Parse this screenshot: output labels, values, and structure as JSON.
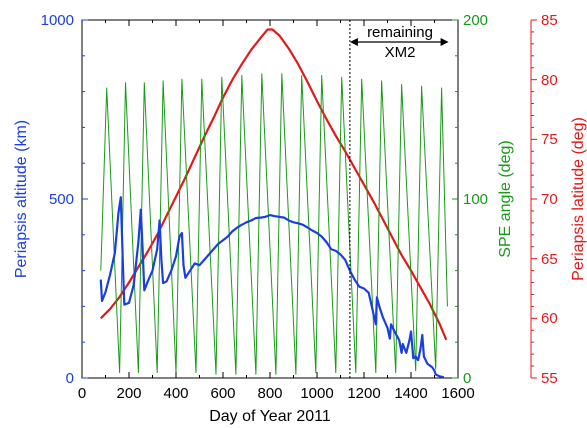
{
  "chart_data": {
    "type": "line",
    "xlabel": "Day of Year 2011",
    "xlim": [
      0,
      1600
    ],
    "x_ticks": [
      "0",
      "200",
      "400",
      "600",
      "800",
      "1000",
      "1200",
      "1400",
      "1600"
    ],
    "y_axes": {
      "altitude": {
        "label": "Periapsis altitude (km)",
        "lim": [
          0,
          1000
        ],
        "ticks": [
          "0",
          "500",
          "1000"
        ],
        "color": "#1a3fe0"
      },
      "spe": {
        "label": "SPE angle (deg)",
        "lim": [
          0,
          200
        ],
        "ticks": [
          "0",
          "100",
          "200"
        ],
        "color": "#1a9a1a"
      },
      "latitude": {
        "label": "Periapsis latitude (deg)",
        "lim": [
          55,
          85
        ],
        "ticks": [
          "55",
          "60",
          "65",
          "70",
          "75",
          "80",
          "85"
        ],
        "color": "#e01a1a"
      }
    },
    "annotation": {
      "line1": "remaining",
      "line2": "XM2",
      "x_start": 1140,
      "x_end": 1560
    },
    "series": [
      {
        "axis": "latitude",
        "color": "#e01a1a",
        "points": [
          [
            80,
            60
          ],
          [
            120,
            60.8
          ],
          [
            160,
            61.8
          ],
          [
            200,
            63
          ],
          [
            240,
            64.3
          ],
          [
            280,
            65.6
          ],
          [
            320,
            67
          ],
          [
            360,
            68.6
          ],
          [
            400,
            70.2
          ],
          [
            440,
            71.8
          ],
          [
            480,
            73.5
          ],
          [
            520,
            75.2
          ],
          [
            560,
            76.8
          ],
          [
            600,
            78.5
          ],
          [
            640,
            80
          ],
          [
            680,
            81.3
          ],
          [
            720,
            82.5
          ],
          [
            760,
            83.5
          ],
          [
            790,
            84.2
          ],
          [
            810,
            84.2
          ],
          [
            840,
            83.7
          ],
          [
            880,
            82.6
          ],
          [
            920,
            81.3
          ],
          [
            960,
            79.8
          ],
          [
            1000,
            78.2
          ],
          [
            1040,
            76.7
          ],
          [
            1080,
            75.3
          ],
          [
            1120,
            74
          ],
          [
            1160,
            72.6
          ],
          [
            1200,
            71.2
          ],
          [
            1240,
            69.8
          ],
          [
            1280,
            68.3
          ],
          [
            1320,
            66.8
          ],
          [
            1360,
            65.3
          ],
          [
            1400,
            64
          ],
          [
            1440,
            62.6
          ],
          [
            1480,
            61.2
          ],
          [
            1520,
            59.6
          ],
          [
            1550,
            58.2
          ]
        ]
      },
      {
        "axis": "spe",
        "color": "#1a9a1a",
        "points": [
          [
            80,
            60
          ],
          [
            105,
            162
          ],
          [
            160,
            3
          ],
          [
            185,
            165
          ],
          [
            240,
            3
          ],
          [
            265,
            165
          ],
          [
            320,
            3
          ],
          [
            345,
            166
          ],
          [
            400,
            3
          ],
          [
            425,
            167
          ],
          [
            485,
            3
          ],
          [
            510,
            167
          ],
          [
            570,
            2
          ],
          [
            595,
            168
          ],
          [
            655,
            2
          ],
          [
            680,
            169
          ],
          [
            740,
            2
          ],
          [
            765,
            170
          ],
          [
            825,
            2
          ],
          [
            850,
            170
          ],
          [
            910,
            2
          ],
          [
            935,
            169
          ],
          [
            995,
            3
          ],
          [
            1020,
            169
          ],
          [
            1080,
            3
          ],
          [
            1105,
            168
          ],
          [
            1165,
            3
          ],
          [
            1190,
            167
          ],
          [
            1250,
            3
          ],
          [
            1275,
            166
          ],
          [
            1335,
            3
          ],
          [
            1360,
            164
          ],
          [
            1420,
            4
          ],
          [
            1445,
            163
          ],
          [
            1505,
            5
          ],
          [
            1530,
            162
          ],
          [
            1555,
            40
          ]
        ]
      },
      {
        "axis": "altitude",
        "color": "#1a3fe0",
        "points": [
          [
            80,
            275
          ],
          [
            85,
            215
          ],
          [
            100,
            240
          ],
          [
            120,
            290
          ],
          [
            140,
            350
          ],
          [
            155,
            460
          ],
          [
            165,
            505
          ],
          [
            175,
            300
          ],
          [
            180,
            205
          ],
          [
            200,
            210
          ],
          [
            220,
            260
          ],
          [
            240,
            380
          ],
          [
            250,
            470
          ],
          [
            258,
            360
          ],
          [
            265,
            245
          ],
          [
            280,
            270
          ],
          [
            300,
            300
          ],
          [
            320,
            360
          ],
          [
            330,
            440
          ],
          [
            338,
            330
          ],
          [
            345,
            265
          ],
          [
            360,
            270
          ],
          [
            380,
            300
          ],
          [
            400,
            340
          ],
          [
            415,
            395
          ],
          [
            425,
            405
          ],
          [
            432,
            315
          ],
          [
            440,
            280
          ],
          [
            460,
            300
          ],
          [
            480,
            320
          ],
          [
            500,
            315
          ],
          [
            520,
            330
          ],
          [
            540,
            345
          ],
          [
            560,
            360
          ],
          [
            580,
            375
          ],
          [
            600,
            385
          ],
          [
            620,
            395
          ],
          [
            640,
            410
          ],
          [
            660,
            420
          ],
          [
            680,
            428
          ],
          [
            700,
            435
          ],
          [
            720,
            440
          ],
          [
            740,
            447
          ],
          [
            760,
            448
          ],
          [
            780,
            450
          ],
          [
            800,
            455
          ],
          [
            820,
            452
          ],
          [
            840,
            450
          ],
          [
            860,
            448
          ],
          [
            880,
            440
          ],
          [
            900,
            435
          ],
          [
            920,
            432
          ],
          [
            940,
            428
          ],
          [
            960,
            420
          ],
          [
            980,
            412
          ],
          [
            1000,
            405
          ],
          [
            1020,
            395
          ],
          [
            1040,
            380
          ],
          [
            1060,
            360
          ],
          [
            1080,
            355
          ],
          [
            1100,
            345
          ],
          [
            1120,
            330
          ],
          [
            1140,
            300
          ],
          [
            1160,
            275
          ],
          [
            1180,
            255
          ],
          [
            1200,
            250
          ],
          [
            1220,
            238
          ],
          [
            1240,
            180
          ],
          [
            1250,
            150
          ],
          [
            1255,
            225
          ],
          [
            1265,
            200
          ],
          [
            1280,
            170
          ],
          [
            1300,
            140
          ],
          [
            1310,
            110
          ],
          [
            1315,
            150
          ],
          [
            1330,
            130
          ],
          [
            1350,
            105
          ],
          [
            1360,
            70
          ],
          [
            1365,
            95
          ],
          [
            1380,
            70
          ],
          [
            1395,
            110
          ],
          [
            1400,
            130
          ],
          [
            1410,
            55
          ],
          [
            1420,
            60
          ],
          [
            1430,
            50
          ],
          [
            1440,
            80
          ],
          [
            1448,
            120
          ],
          [
            1455,
            60
          ],
          [
            1470,
            40
          ],
          [
            1490,
            30
          ],
          [
            1500,
            20
          ],
          [
            1505,
            10
          ],
          [
            1520,
            5
          ],
          [
            1540,
            2
          ]
        ]
      }
    ]
  }
}
